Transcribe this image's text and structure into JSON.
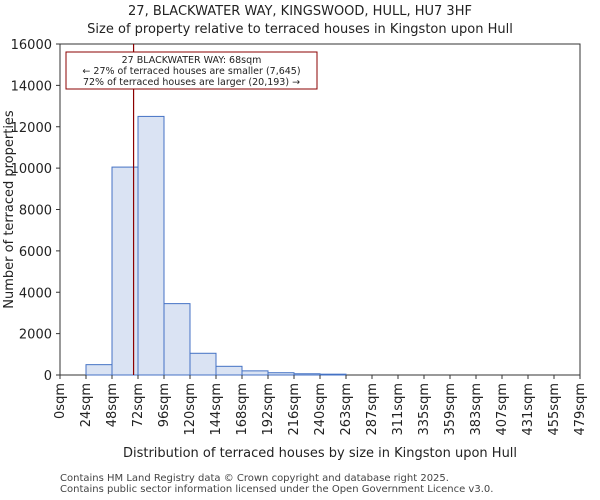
{
  "header": {
    "title": "27, BLACKWATER WAY, KINGSWOOD, HULL, HU7 3HF",
    "subtitle": "Size of property relative to terraced houses in Kingston upon Hull"
  },
  "footer": {
    "line1": "Contains HM Land Registry data © Crown copyright and database right 2025.",
    "line2": "Contains public sector information licensed under the Open Government Licence v3.0."
  },
  "chart_data": {
    "type": "bar",
    "title": "27, BLACKWATER WAY, KINGSWOOD, HULL, HU7 3HF",
    "subtitle": "Size of property relative to terraced houses in Kingston upon Hull",
    "xlabel": "Distribution of terraced houses by size in Kingston upon Hull",
    "ylabel": "Number of terraced properties",
    "x_tick_labels": [
      "0sqm",
      "24sqm",
      "48sqm",
      "72sqm",
      "96sqm",
      "120sqm",
      "144sqm",
      "168sqm",
      "192sqm",
      "216sqm",
      "240sqm",
      "263sqm",
      "287sqm",
      "311sqm",
      "335sqm",
      "359sqm",
      "383sqm",
      "407sqm",
      "431sqm",
      "455sqm",
      "479sqm"
    ],
    "values": [
      0,
      500,
      10050,
      12500,
      3450,
      1050,
      420,
      200,
      110,
      60,
      40,
      0,
      0,
      0,
      0,
      0,
      0,
      0,
      0,
      0
    ],
    "y_ticks": [
      0,
      2000,
      4000,
      6000,
      8000,
      10000,
      12000,
      14000,
      16000
    ],
    "ylim": [
      0,
      16000
    ],
    "bar_color": "#dae3f3",
    "bar_edge_color": "#4472c4",
    "marker": {
      "value_bin_position": 2.83,
      "color": "#8b0000",
      "label_lines": [
        "27 BLACKWATER WAY: 68sqm",
        "← 27% of terraced houses are smaller (7,645)",
        "72% of terraced houses are larger (20,193) →"
      ]
    }
  }
}
